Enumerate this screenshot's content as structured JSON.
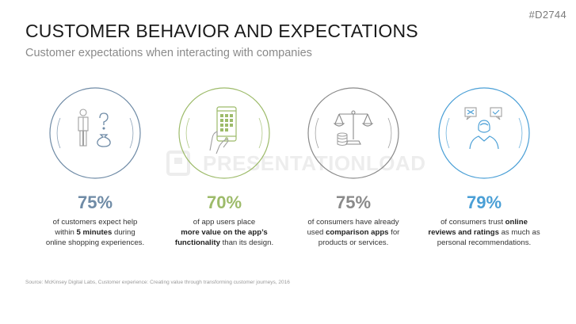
{
  "slide_id": "#D2744",
  "title": "CUSTOMER BEHAVIOR AND EXPECTATIONS",
  "subtitle": "Customer expectations when interacting with companies",
  "watermark": "PRESENTATIONLOAD",
  "colors": {
    "blue_gray": "#6f8ba6",
    "green": "#9dbb6a",
    "gray": "#8a8a8a",
    "blue": "#4a9fd6"
  },
  "stats": [
    {
      "icon": "person-question-money-icon",
      "value": "75%",
      "color": "#6f8ba6",
      "line1_a": "of customers expect help",
      "line2_a": "within ",
      "line2_b": "5 minutes",
      "line2_c": " during",
      "line3_a": "online shopping experiences.",
      "line3_b": "",
      "line3_c": ""
    },
    {
      "icon": "smartphone-hand-icon",
      "value": "70%",
      "color": "#9dbb6a",
      "line1_a": "of app users place",
      "line2_a": "",
      "line2_b": "more value on the app’s",
      "line2_c": "",
      "line3_a": "",
      "line3_b": "functionality",
      "line3_c": " than its design."
    },
    {
      "icon": "scale-coins-icon",
      "value": "75%",
      "color": "#8a8a8a",
      "line1_a": "of consumers have already",
      "line2_a": "used ",
      "line2_b": "comparison apps",
      "line2_c": " for",
      "line3_a": "products or services.",
      "line3_b": "",
      "line3_c": ""
    },
    {
      "icon": "person-checkbox-icon",
      "value": "79%",
      "color": "#4a9fd6",
      "line1_a": "of consumers trust ",
      "line1_b": "online",
      "line2_a": "",
      "line2_b": "reviews and ratings",
      "line2_c": " as much as",
      "line3_a": "personal recommendations.",
      "line3_b": "",
      "line3_c": ""
    }
  ],
  "source": "Source: McKinsey Digital Labs, Customer experience: Creating value through transforming customer journeys, 2016"
}
